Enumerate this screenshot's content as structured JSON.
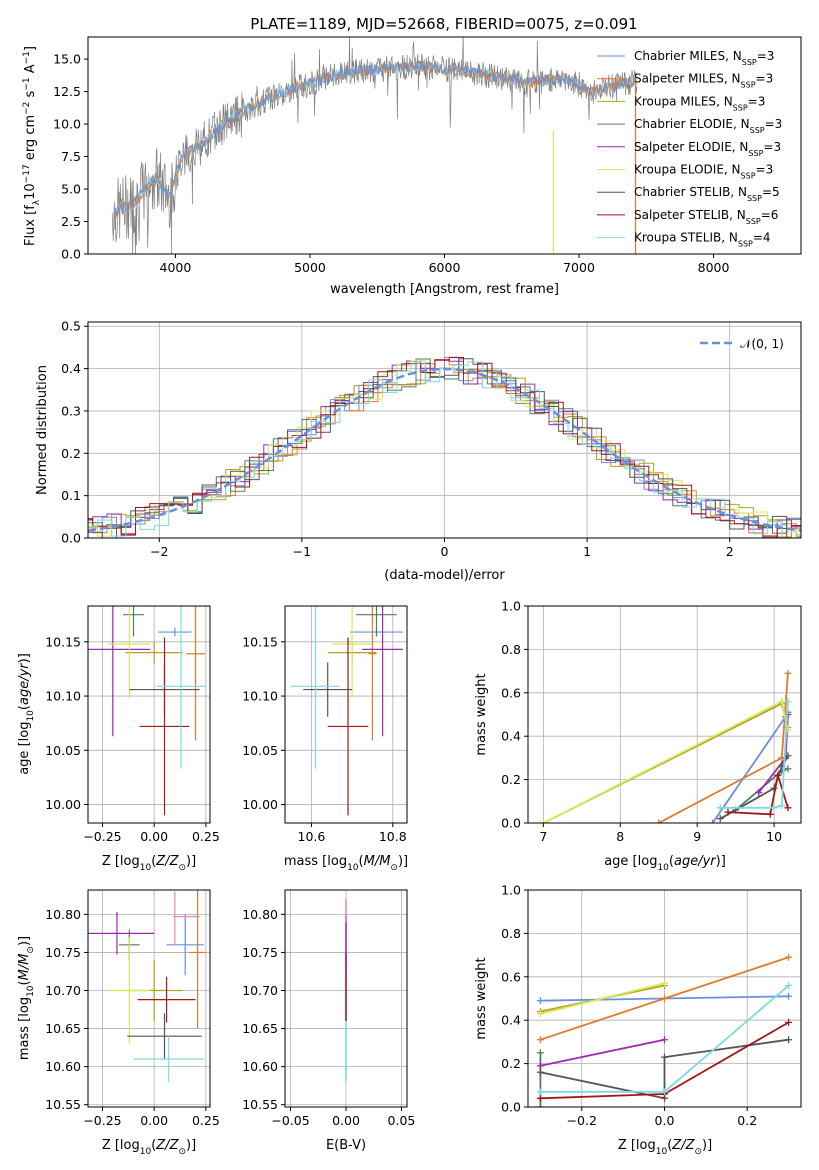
{
  "figure_title": "PLATE=1189, MJD=52668, FIBERID=0075, z=0.091",
  "colors": [
    "#6a8fdc",
    "#e07a2a",
    "#b8a020",
    "#4f7f5f",
    "#9a2ab0",
    "#d6e85a",
    "#555555",
    "#a01818",
    "#7fd8e4"
  ],
  "models": [
    "Chabrier MILES",
    "Salpeter MILES",
    "Kroupa MILES",
    "Chabrier ELODIE",
    "Salpeter ELODIE",
    "Kroupa ELODIE",
    "Chabrier STELIB",
    "Salpeter STELIB",
    "Kroupa STELIB"
  ],
  "chart_data": [
    {
      "id": "spectrum",
      "type": "line",
      "xlabel": "wavelength [Angstrom, rest frame]",
      "ylabel": "Flux [f_λ 10^-17 erg cm^-2 s^-1 A^-1]",
      "xlim": [
        3350,
        8650
      ],
      "ylim": [
        0,
        16.7
      ],
      "xticks": [
        "4000",
        "5000",
        "6000",
        "7000",
        "8000"
      ],
      "yticks": [
        "0.0",
        "2.5",
        "5.0",
        "7.5",
        "10.0",
        "12.5",
        "15.0"
      ],
      "grid": false,
      "legend_position": "top-right",
      "legend": [
        {
          "name": "Chabrier MILES",
          "nssp": "3"
        },
        {
          "name": "Salpeter MILES",
          "nssp": "3"
        },
        {
          "name": "Kroupa MILES",
          "nssp": "3"
        },
        {
          "name": "Chabrier ELODIE",
          "nssp": "3"
        },
        {
          "name": "Salpeter ELODIE",
          "nssp": "3"
        },
        {
          "name": "Kroupa ELODIE",
          "nssp": "3"
        },
        {
          "name": "Chabrier STELIB",
          "nssp": "5"
        },
        {
          "name": "Salpeter STELIB",
          "nssp": "6"
        },
        {
          "name": "Kroupa STELIB",
          "nssp": "4"
        }
      ],
      "data_wavelength": [
        3550,
        3700,
        3850,
        3950,
        4050,
        4200,
        4350,
        4500,
        4700,
        4900,
        5100,
        5300,
        5500,
        5800,
        6000,
        6300,
        6600,
        6900,
        7100,
        7400,
        7700,
        8000,
        8300,
        8600
      ],
      "data_flux": [
        3.2,
        4.0,
        6.0,
        4.5,
        7.5,
        8.5,
        10.0,
        11.0,
        12.0,
        12.8,
        13.5,
        14.0,
        14.2,
        14.5,
        14.2,
        13.8,
        13.2,
        13.5,
        12.5,
        13.3,
        13.2,
        13.0,
        12.7,
        12.6
      ]
    },
    {
      "id": "residuals",
      "type": "bar",
      "xlabel": "(data-model)/error",
      "ylabel": "Normed distribution",
      "xlim": [
        -2.5,
        2.5
      ],
      "ylim": [
        0,
        0.51
      ],
      "xticks": [
        "−2",
        "−1",
        "0",
        "1",
        "2"
      ],
      "yticks": [
        "0.0",
        "0.1",
        "0.2",
        "0.3",
        "0.4",
        "0.5"
      ],
      "grid": true,
      "reference_curve": "𝒩(0, 1)",
      "bin_width": 0.1,
      "description": "histograms of normalized residuals for each of the 9 models, following a normal distribution"
    },
    {
      "id": "age_vs_Z",
      "type": "scatter",
      "xlabel": "Z [log10(Z/Z⊙)]",
      "ylabel": "age [log10(age/yr)]",
      "xticks": [
        "−0.25",
        "0.00",
        "0.25"
      ],
      "yticks": [
        "10.00",
        "10.05",
        "10.10",
        "10.15"
      ],
      "points": [
        {
          "model": "Chabrier MILES",
          "x": 0.1,
          "xerr": 0.08,
          "y": 10.159,
          "yerr": 0.004
        },
        {
          "model": "Salpeter MILES",
          "x": 0.2,
          "xerr": 0.045,
          "y": 10.139,
          "yerr": 0.08
        },
        {
          "model": "Kroupa MILES",
          "x": 0.0,
          "xerr": 0.14,
          "y": 10.14,
          "yerr": 0.01
        },
        {
          "model": "Chabrier ELODIE",
          "x": -0.1,
          "xerr": 0.05,
          "y": 10.175,
          "yerr": 0.02
        },
        {
          "model": "Salpeter ELODIE",
          "x": -0.2,
          "xerr": 0.18,
          "y": 10.143,
          "yerr": 0.08
        },
        {
          "model": "Kroupa ELODIE",
          "x": -0.12,
          "xerr": 0.1,
          "y": 10.148,
          "yerr": 0.05
        },
        {
          "model": "Chabrier STELIB",
          "x": 0.05,
          "xerr": 0.17,
          "y": 10.106,
          "yerr": 0.025
        },
        {
          "model": "Salpeter STELIB",
          "x": 0.05,
          "xerr": 0.12,
          "y": 10.072,
          "yerr": 0.082
        },
        {
          "model": "Kroupa STELIB",
          "x": 0.13,
          "xerr": 0.12,
          "y": 10.109,
          "yerr": 0.076
        }
      ]
    },
    {
      "id": "age_vs_mass",
      "type": "scatter",
      "xlabel": "mass [log10(M/M⊙)]",
      "xticks": [
        "10.6",
        "10.8"
      ],
      "yticks": [
        "10.00",
        "10.05",
        "10.10",
        "10.15"
      ]
    },
    {
      "id": "massweight_vs_age",
      "type": "line",
      "xlabel": "age [log10(age/yr)]",
      "ylabel": "mass weight",
      "xlim": [
        6.8,
        10.35
      ],
      "ylim": [
        0,
        1
      ],
      "xticks": [
        "7",
        "8",
        "9",
        "10"
      ],
      "yticks": [
        "0.0",
        "0.2",
        "0.4",
        "0.6",
        "0.8",
        "1.0"
      ],
      "series": [
        {
          "model": "Chabrier MILES",
          "x": [
            9.2,
            10.15,
            10.18
          ],
          "y": [
            0.0,
            0.49,
            0.51
          ]
        },
        {
          "model": "Salpeter MILES",
          "x": [
            8.5,
            10.1,
            10.18
          ],
          "y": [
            0.0,
            0.3,
            0.69
          ]
        },
        {
          "model": "Kroupa MILES",
          "x": [
            7.0,
            10.1,
            10.18
          ],
          "y": [
            0.0,
            0.55,
            0.44
          ]
        },
        {
          "model": "Chabrier ELODIE",
          "x": [
            9.5,
            10.1,
            10.18
          ],
          "y": [
            0.06,
            0.24,
            0.25
          ]
        },
        {
          "model": "Salpeter ELODIE",
          "x": [
            9.8,
            10.15,
            10.18
          ],
          "y": [
            0.14,
            0.3,
            0.5
          ]
        },
        {
          "model": "Kroupa ELODIE",
          "x": [
            7.0,
            10.1,
            10.18
          ],
          "y": [
            0.0,
            0.56,
            0.43
          ]
        },
        {
          "model": "Chabrier STELIB",
          "x": [
            9.3,
            10.0,
            10.1,
            10.18
          ],
          "y": [
            0.02,
            0.16,
            0.26,
            0.31
          ]
        },
        {
          "model": "Salpeter STELIB",
          "x": [
            9.4,
            9.95,
            10.05,
            10.18
          ],
          "y": [
            0.05,
            0.04,
            0.22,
            0.07
          ]
        },
        {
          "model": "Kroupa STELIB",
          "x": [
            9.3,
            10.0,
            10.1,
            10.18
          ],
          "y": [
            0.07,
            0.07,
            0.08,
            0.56
          ]
        }
      ]
    },
    {
      "id": "mass_vs_Z",
      "type": "scatter",
      "xlabel": "Z [log10(Z/Z⊙)]",
      "ylabel": "mass [log10(M/M⊙)]",
      "xticks": [
        "−0.25",
        "0.00",
        "0.25"
      ],
      "yticks": [
        "10.55",
        "10.60",
        "10.65",
        "10.70",
        "10.75",
        "10.80"
      ]
    },
    {
      "id": "mass_vs_ebv",
      "type": "scatter",
      "xlabel": "E(B-V)",
      "xlim": [
        -0.055,
        0.055
      ],
      "xticks": [
        "−0.05",
        "0.00",
        "0.05"
      ],
      "yticks": [
        "10.55",
        "10.60",
        "10.65",
        "10.70",
        "10.75",
        "10.80"
      ],
      "ebv_values": [
        0,
        0,
        0,
        0,
        0,
        0,
        0,
        0,
        0
      ]
    },
    {
      "id": "massweight_vs_Z",
      "type": "line",
      "xlabel": "Z [log10(Z/Z⊙)]",
      "ylabel": "mass weight",
      "xlim": [
        -0.33,
        0.33
      ],
      "ylim": [
        0,
        1
      ],
      "xticks": [
        "−0.2",
        "0.0",
        "0.2"
      ],
      "yticks": [
        "0.0",
        "0.2",
        "0.4",
        "0.6",
        "0.8",
        "1.0"
      ],
      "series": [
        {
          "model": "Chabrier MILES",
          "x": [
            -0.3,
            0.3
          ],
          "y": [
            0.49,
            0.51
          ]
        },
        {
          "model": "Salpeter MILES",
          "x": [
            -0.3,
            0.0,
            0.3
          ],
          "y": [
            0.31,
            0.5,
            0.69
          ]
        },
        {
          "model": "Kroupa MILES",
          "x": [
            -0.3,
            0.0
          ],
          "y": [
            0.44,
            0.56
          ]
        },
        {
          "model": "Chabrier ELODIE",
          "x": [
            -0.3,
            -0.3
          ],
          "y": [
            0.25,
            0.0
          ]
        },
        {
          "model": "Salpeter ELODIE",
          "x": [
            -0.3,
            0.0
          ],
          "y": [
            0.19,
            0.31
          ]
        },
        {
          "model": "Kroupa ELODIE",
          "x": [
            -0.3,
            0.0
          ],
          "y": [
            0.43,
            0.57
          ]
        },
        {
          "model": "Chabrier STELIB",
          "x": [
            -0.3,
            0.0,
            0.0,
            0.3
          ],
          "y": [
            0.16,
            0.04,
            0.23,
            0.31
          ]
        },
        {
          "model": "Salpeter STELIB",
          "x": [
            -0.3,
            0.0,
            0.3
          ],
          "y": [
            0.04,
            0.06,
            0.39
          ]
        },
        {
          "model": "Kroupa STELIB",
          "x": [
            -0.3,
            0.0,
            0.3
          ],
          "y": [
            0.07,
            0.07,
            0.56
          ]
        }
      ]
    }
  ]
}
